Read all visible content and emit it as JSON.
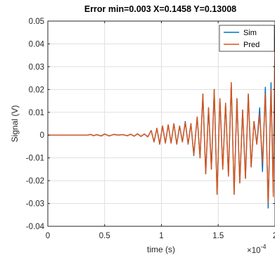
{
  "chart_data": {
    "type": "line",
    "title": "Error min=0.003 X=0.1458  Y=0.13008",
    "xlabel": "time (s)",
    "ylabel": "Signal (V)",
    "x_exponent_label": "×10",
    "x_exponent_power": "-4",
    "xlim": [
      0,
      2
    ],
    "ylim": [
      -0.04,
      0.05
    ],
    "x_ticks": [
      0,
      0.5,
      1,
      1.5,
      2
    ],
    "x_tick_labels": [
      "0",
      "0.5",
      "1",
      "1.5",
      "2"
    ],
    "y_ticks": [
      -0.04,
      -0.03,
      -0.02,
      -0.01,
      0,
      0.01,
      0.02,
      0.03,
      0.04,
      0.05
    ],
    "y_tick_labels": [
      "-0.04",
      "-0.03",
      "-0.02",
      "-0.01",
      "0",
      "0.01",
      "0.02",
      "0.03",
      "0.04",
      "0.05"
    ],
    "grid": true,
    "legend_position": "top-right",
    "series": [
      {
        "name": "Sim",
        "color": "#0072bd",
        "points": [
          [
            0,
            0
          ],
          [
            0.35,
            0
          ],
          [
            0.38,
            0.0003
          ],
          [
            0.4,
            -0.0003
          ],
          [
            0.43,
            0.0002
          ],
          [
            0.47,
            -0.0004
          ],
          [
            0.5,
            0.0005
          ],
          [
            0.54,
            -0.0004
          ],
          [
            0.58,
            0.0003
          ],
          [
            0.62,
            0
          ],
          [
            0.66,
            0.0002
          ],
          [
            0.7,
            -0.0003
          ],
          [
            0.73,
            0.0004
          ],
          [
            0.76,
            -0.0005
          ],
          [
            0.79,
            0.0006
          ],
          [
            0.82,
            -0.0006
          ],
          [
            0.85,
            0.0005
          ],
          [
            0.88,
            -0.0008
          ],
          [
            0.91,
            0.002
          ],
          [
            0.935,
            -0.003
          ],
          [
            0.96,
            0.003
          ],
          [
            0.985,
            -0.004
          ],
          [
            1.01,
            0.004
          ],
          [
            1.035,
            -0.0035
          ],
          [
            1.06,
            0.0045
          ],
          [
            1.085,
            -0.0035
          ],
          [
            1.11,
            0.005
          ],
          [
            1.135,
            -0.004
          ],
          [
            1.16,
            0.004
          ],
          [
            1.185,
            -0.003
          ],
          [
            1.21,
            0.006
          ],
          [
            1.235,
            -0.004
          ],
          [
            1.26,
            0.005
          ],
          [
            1.285,
            -0.009
          ],
          [
            1.315,
            0.008
          ],
          [
            1.34,
            -0.01
          ],
          [
            1.365,
            0.018
          ],
          [
            1.39,
            -0.017
          ],
          [
            1.415,
            0.012
          ],
          [
            1.44,
            -0.015
          ],
          [
            1.465,
            0.02
          ],
          [
            1.49,
            -0.026
          ],
          [
            1.515,
            0.016
          ],
          [
            1.54,
            -0.015
          ],
          [
            1.565,
            0.014
          ],
          [
            1.59,
            -0.018
          ],
          [
            1.615,
            0.023
          ],
          [
            1.64,
            -0.026
          ],
          [
            1.665,
            0.016
          ],
          [
            1.69,
            -0.021
          ],
          [
            1.715,
            0.011
          ],
          [
            1.74,
            -0.019
          ],
          [
            1.765,
            0.018
          ],
          [
            1.79,
            -0.014
          ],
          [
            1.815,
            0.006
          ],
          [
            1.84,
            -0.004
          ],
          [
            1.865,
            0.012
          ],
          [
            1.89,
            -0.016
          ],
          [
            1.915,
            0.021
          ],
          [
            1.94,
            -0.032
          ],
          [
            1.965,
            0.023
          ],
          [
            1.985,
            -0.025
          ],
          [
            2.0,
            0.044
          ]
        ]
      },
      {
        "name": "Pred",
        "color": "#d95319",
        "points": [
          [
            0,
            0
          ],
          [
            0.35,
            0
          ],
          [
            0.38,
            0.0003
          ],
          [
            0.4,
            -0.0003
          ],
          [
            0.43,
            0.0002
          ],
          [
            0.47,
            -0.0004
          ],
          [
            0.5,
            0.0005
          ],
          [
            0.54,
            -0.0004
          ],
          [
            0.58,
            0.0003
          ],
          [
            0.62,
            0
          ],
          [
            0.66,
            0.0002
          ],
          [
            0.7,
            -0.0003
          ],
          [
            0.73,
            0.0004
          ],
          [
            0.76,
            -0.0005
          ],
          [
            0.79,
            0.0006
          ],
          [
            0.82,
            -0.0006
          ],
          [
            0.85,
            0.0005
          ],
          [
            0.88,
            -0.0008
          ],
          [
            0.91,
            0.002
          ],
          [
            0.935,
            -0.003
          ],
          [
            0.96,
            0.003
          ],
          [
            0.985,
            -0.004
          ],
          [
            1.01,
            0.004
          ],
          [
            1.035,
            -0.0035
          ],
          [
            1.06,
            0.0045
          ],
          [
            1.085,
            -0.0035
          ],
          [
            1.11,
            0.005
          ],
          [
            1.135,
            -0.004
          ],
          [
            1.16,
            0.004
          ],
          [
            1.185,
            -0.003
          ],
          [
            1.21,
            0.0055
          ],
          [
            1.235,
            -0.004
          ],
          [
            1.26,
            0.005
          ],
          [
            1.285,
            -0.0085
          ],
          [
            1.315,
            0.008
          ],
          [
            1.34,
            -0.01
          ],
          [
            1.365,
            0.018
          ],
          [
            1.39,
            -0.017
          ],
          [
            1.415,
            0.012
          ],
          [
            1.44,
            -0.015
          ],
          [
            1.465,
            0.02
          ],
          [
            1.49,
            -0.026
          ],
          [
            1.515,
            0.016
          ],
          [
            1.54,
            -0.015
          ],
          [
            1.565,
            0.014
          ],
          [
            1.59,
            -0.018
          ],
          [
            1.615,
            0.023
          ],
          [
            1.64,
            -0.026
          ],
          [
            1.665,
            0.016
          ],
          [
            1.69,
            -0.021
          ],
          [
            1.715,
            0.011
          ],
          [
            1.74,
            -0.019
          ],
          [
            1.765,
            0.018
          ],
          [
            1.79,
            -0.014
          ],
          [
            1.815,
            0.006
          ],
          [
            1.84,
            -0.004
          ],
          [
            1.865,
            0.009
          ],
          [
            1.89,
            -0.012
          ],
          [
            1.915,
            0.018
          ],
          [
            1.94,
            -0.03
          ],
          [
            1.965,
            0.02
          ],
          [
            1.985,
            -0.027
          ],
          [
            2.0,
            0.044
          ]
        ]
      }
    ]
  }
}
